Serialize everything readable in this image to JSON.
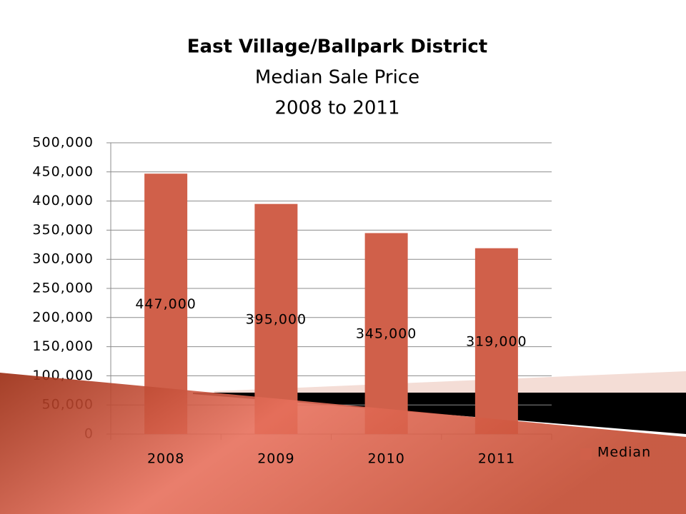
{
  "chart_data": {
    "type": "bar",
    "title": [
      "East Village/Ballpark District",
      "Median Sale Price",
      "2008 to 2011"
    ],
    "categories": [
      "2008",
      "2009",
      "2010",
      "2011"
    ],
    "series": [
      {
        "name": "Median",
        "color": "#d0604a",
        "values": [
          447000,
          395000,
          345000,
          319000
        ],
        "value_labels": [
          "447,000",
          "395,000",
          "345,000",
          "319,000"
        ]
      }
    ],
    "ylim": [
      0,
      500000
    ],
    "yticks": [
      0,
      {
        "value": 50000,
        "label": "50,000"
      },
      {
        "value": 100000,
        "label": "100,000"
      },
      {
        "value": 150000,
        "label": "150,000"
      },
      {
        "value": 200000,
        "label": "200,000"
      },
      {
        "value": 250000,
        "label": "250,000"
      },
      {
        "value": 300000,
        "label": "300,000"
      },
      {
        "value": 350000,
        "label": "350,000"
      },
      {
        "value": 400000,
        "label": "400,000"
      },
      {
        "value": 450000,
        "label": "450,000"
      },
      {
        "value": 500000,
        "label": "500,000"
      }
    ],
    "grid": true,
    "legend": "right"
  }
}
